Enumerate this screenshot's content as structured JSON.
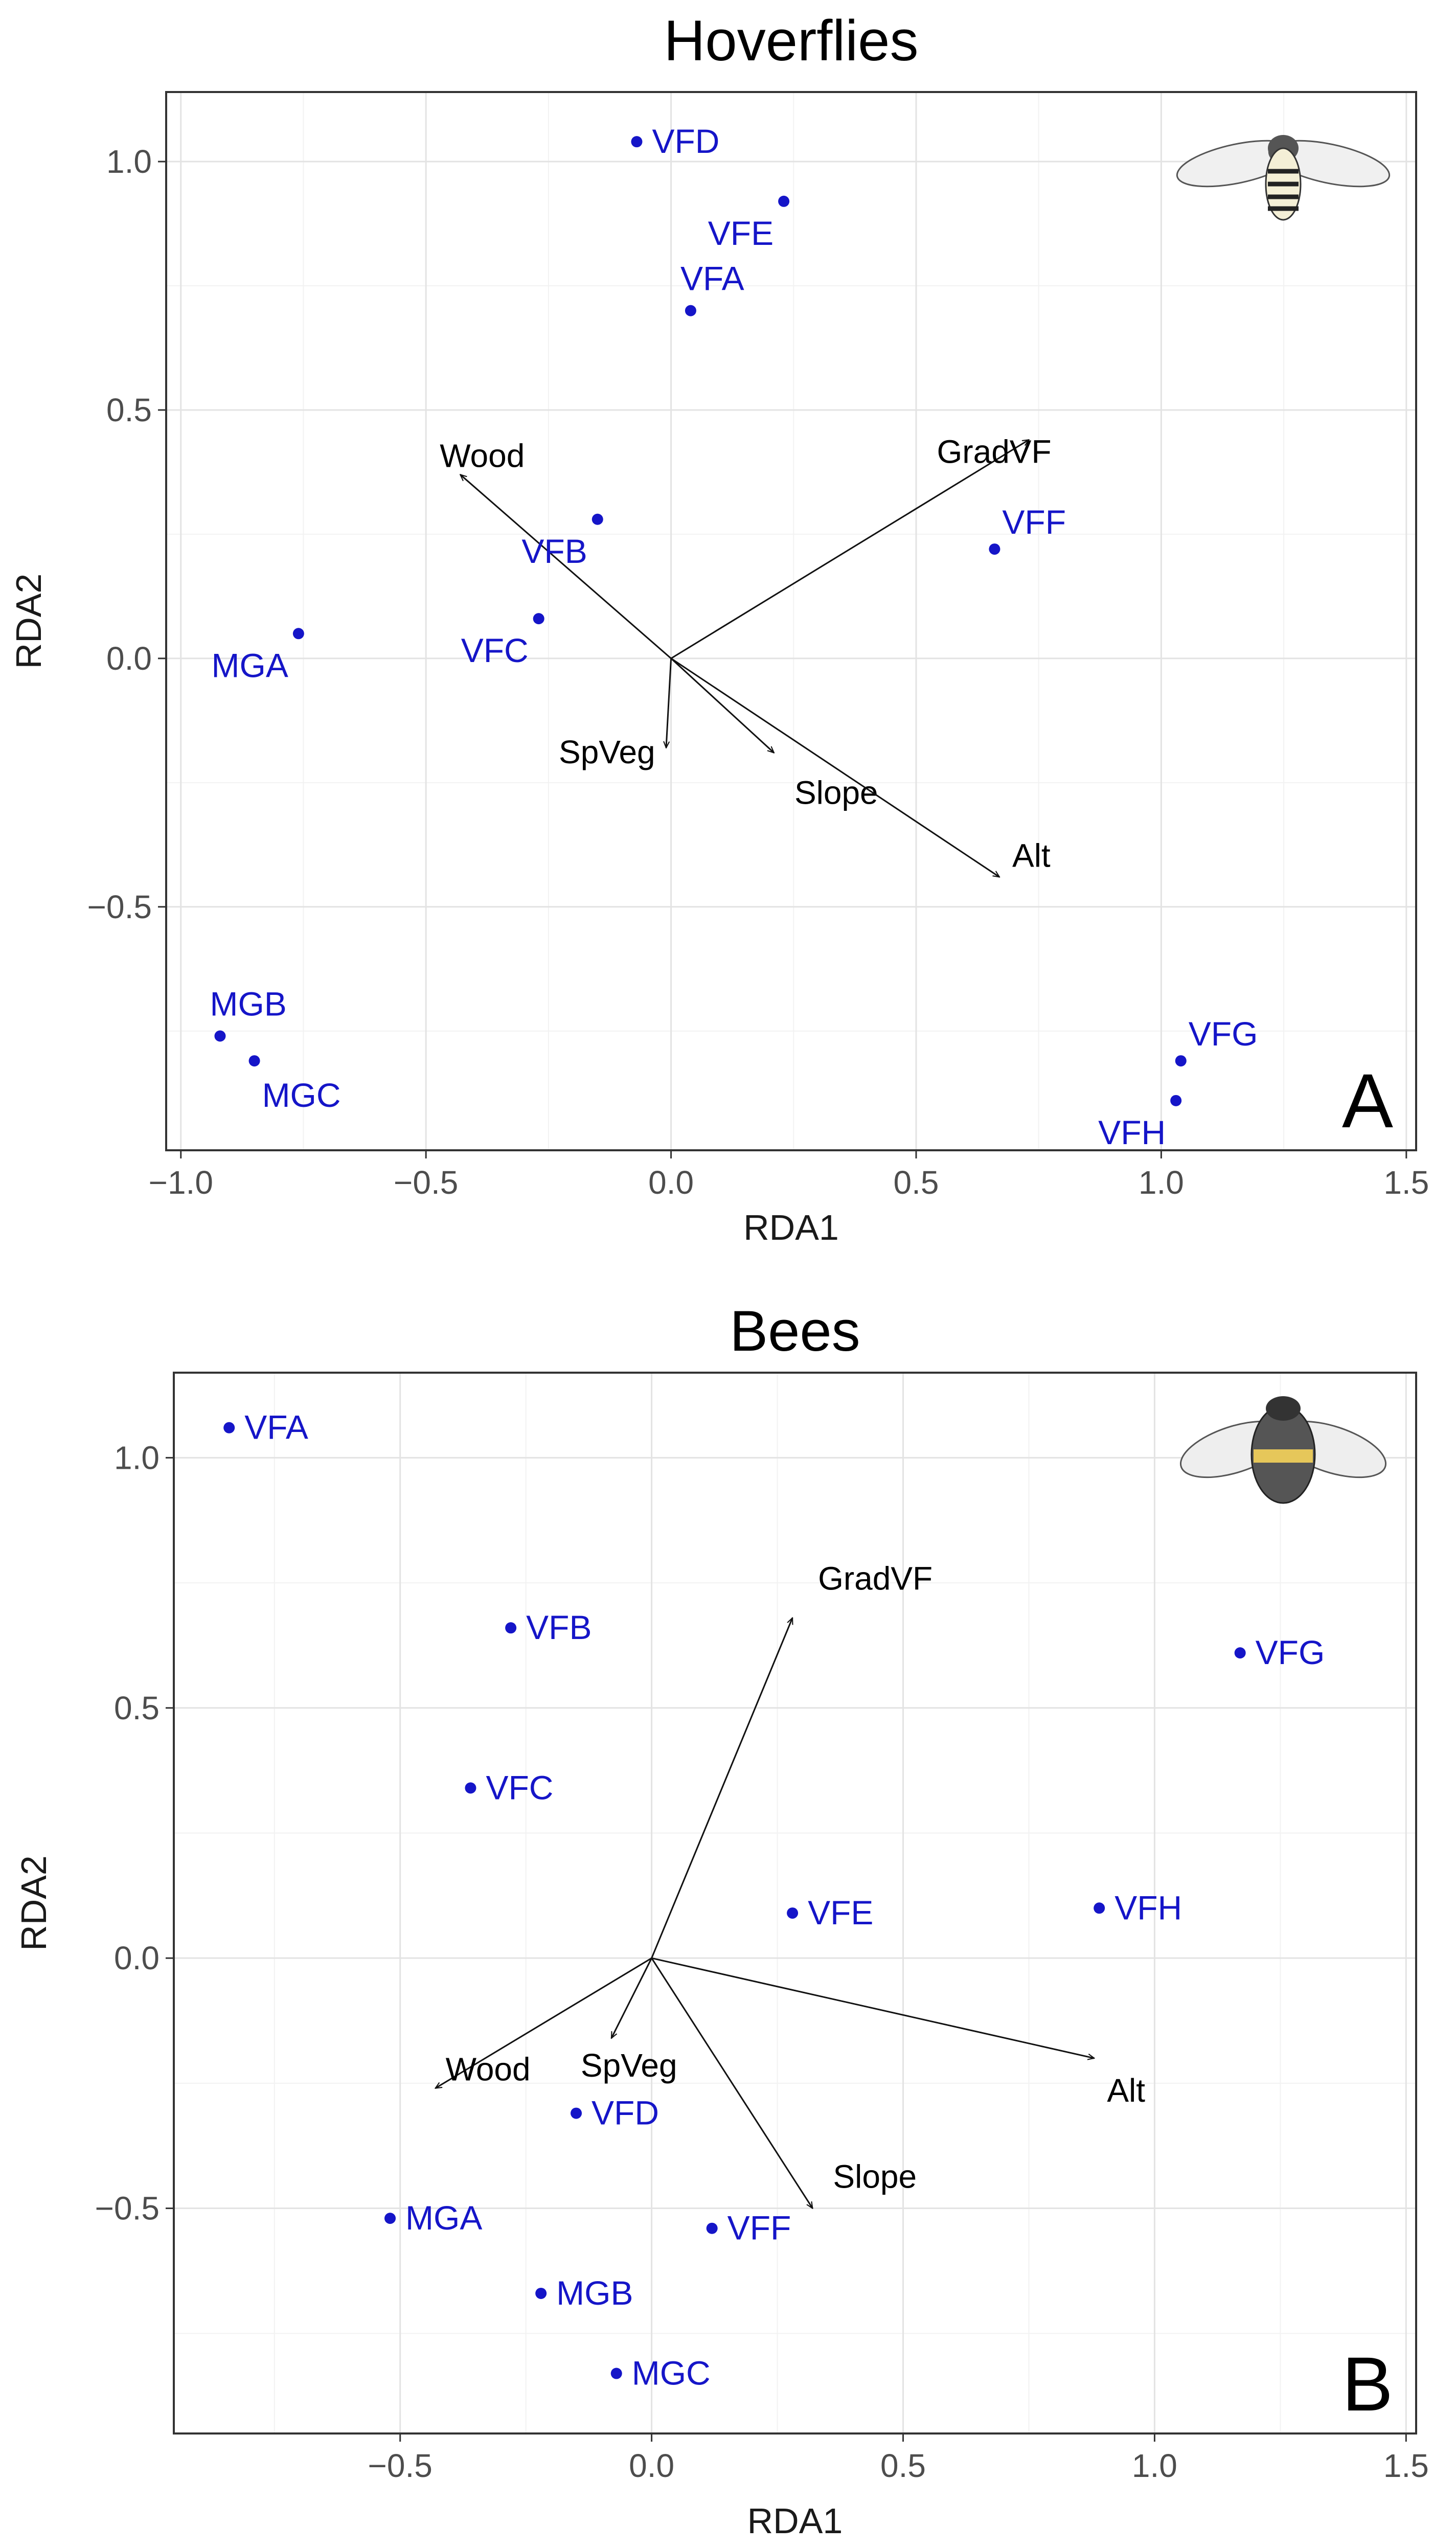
{
  "chart_data": [
    {
      "type": "scatter",
      "title": "Hoverflies",
      "xlabel": "RDA1",
      "ylabel": "RDA2",
      "xlim": [
        -1.03,
        1.52
      ],
      "ylim": [
        -0.99,
        1.14
      ],
      "xticks": [
        -1.0,
        -0.5,
        0.0,
        0.5,
        1.0,
        1.5
      ],
      "yticks": [
        -0.5,
        0.0,
        0.5,
        1.0
      ],
      "panel_label": "A",
      "icon": "hoverfly-icon",
      "sites": [
        {
          "name": "VFD",
          "x": -0.07,
          "y": 1.04,
          "label_pos": "right"
        },
        {
          "name": "VFE",
          "x": 0.23,
          "y": 0.92,
          "label_pos": "below-left"
        },
        {
          "name": "VFA",
          "x": 0.04,
          "y": 0.7,
          "label_pos": "above"
        },
        {
          "name": "VFB",
          "x": -0.15,
          "y": 0.28,
          "label_pos": "below-left"
        },
        {
          "name": "VFF",
          "x": 0.66,
          "y": 0.22,
          "label_pos": "above-right"
        },
        {
          "name": "MGA",
          "x": -0.76,
          "y": 0.05,
          "label_pos": "below-left"
        },
        {
          "name": "VFC",
          "x": -0.27,
          "y": 0.08,
          "label_pos": "below-left"
        },
        {
          "name": "MGB",
          "x": -0.92,
          "y": -0.76,
          "label_pos": "above"
        },
        {
          "name": "MGC",
          "x": -0.85,
          "y": -0.81,
          "label_pos": "below-right"
        },
        {
          "name": "VFG",
          "x": 1.04,
          "y": -0.81,
          "label_pos": "above-right"
        },
        {
          "name": "VFH",
          "x": 1.03,
          "y": -0.89,
          "label_pos": "below-left"
        }
      ],
      "vectors": [
        {
          "name": "Wood",
          "x": -0.43,
          "y": 0.37
        },
        {
          "name": "GradVF",
          "x": 0.73,
          "y": 0.44
        },
        {
          "name": "SpVeg",
          "x": -0.01,
          "y": -0.18
        },
        {
          "name": "Slope",
          "x": 0.21,
          "y": -0.19
        },
        {
          "name": "Alt",
          "x": 0.67,
          "y": -0.44
        }
      ]
    },
    {
      "type": "scatter",
      "title": "Bees",
      "xlabel": "RDA1",
      "ylabel": "RDA2",
      "xlim": [
        -0.95,
        1.52
      ],
      "ylim": [
        -0.95,
        1.17
      ],
      "xticks": [
        -0.5,
        0.0,
        0.5,
        1.0,
        1.5
      ],
      "yticks": [
        -0.5,
        0.0,
        0.5,
        1.0
      ],
      "panel_label": "B",
      "icon": "bumblebee-icon",
      "sites": [
        {
          "name": "VFA",
          "x": -0.84,
          "y": 1.06,
          "label_pos": "right"
        },
        {
          "name": "VFB",
          "x": -0.28,
          "y": 0.66,
          "label_pos": "right"
        },
        {
          "name": "VFG",
          "x": 1.17,
          "y": 0.61,
          "label_pos": "right"
        },
        {
          "name": "VFC",
          "x": -0.36,
          "y": 0.34,
          "label_pos": "right"
        },
        {
          "name": "VFE",
          "x": 0.28,
          "y": 0.09,
          "label_pos": "right"
        },
        {
          "name": "VFH",
          "x": 0.89,
          "y": 0.1,
          "label_pos": "right"
        },
        {
          "name": "VFD",
          "x": -0.15,
          "y": -0.31,
          "label_pos": "right"
        },
        {
          "name": "MGA",
          "x": -0.52,
          "y": -0.52,
          "label_pos": "right"
        },
        {
          "name": "VFF",
          "x": 0.12,
          "y": -0.54,
          "label_pos": "right"
        },
        {
          "name": "MGB",
          "x": -0.22,
          "y": -0.67,
          "label_pos": "right"
        },
        {
          "name": "MGC",
          "x": -0.07,
          "y": -0.83,
          "label_pos": "right"
        }
      ],
      "vectors": [
        {
          "name": "Wood",
          "x": -0.43,
          "y": -0.26
        },
        {
          "name": "GradVF",
          "x": 0.28,
          "y": 0.68
        },
        {
          "name": "SpVeg",
          "x": -0.08,
          "y": -0.16
        },
        {
          "name": "Slope",
          "x": 0.32,
          "y": -0.5
        },
        {
          "name": "Alt",
          "x": 0.88,
          "y": -0.2
        }
      ]
    }
  ]
}
